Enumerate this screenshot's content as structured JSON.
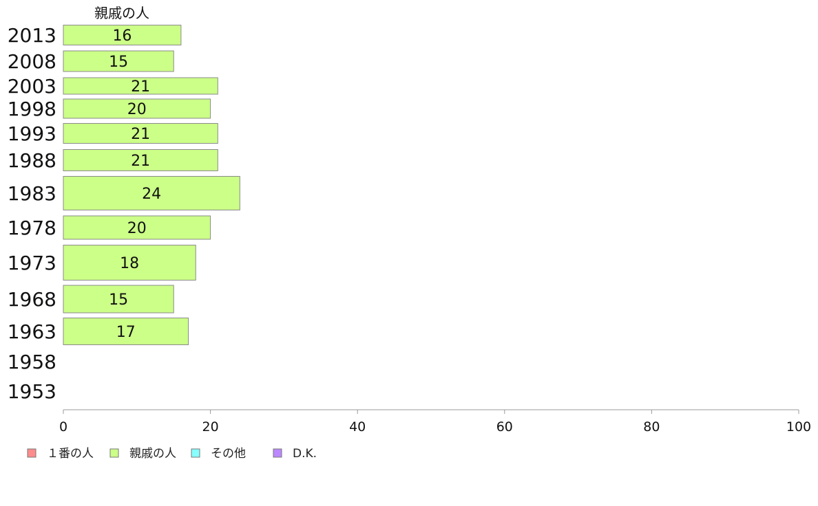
{
  "chart_data": {
    "type": "bar",
    "orientation": "horizontal",
    "column_title": "親戚の人",
    "categories": [
      "2013",
      "2008",
      "2003",
      "1998",
      "1993",
      "1988",
      "1983",
      "1978",
      "1973",
      "1968",
      "1963",
      "1958",
      "1953"
    ],
    "series": [
      {
        "name": "親戚の人",
        "color": "#ccff88",
        "values": [
          16,
          15,
          21,
          20,
          21,
          21,
          24,
          20,
          18,
          15,
          17,
          null,
          null
        ],
        "labels": [
          "16",
          "15",
          "21",
          "20",
          "21",
          "21",
          "24",
          "20",
          "18",
          "15",
          "17",
          "",
          ""
        ]
      }
    ],
    "xlim": [
      0,
      100
    ],
    "x_ticks": [
      "0",
      "20",
      "40",
      "60",
      "80",
      "100"
    ],
    "grid": false,
    "legend": {
      "placement": "bottom-left",
      "items": [
        {
          "label": "１番の人",
          "color": "#ff8c8c"
        },
        {
          "label": "親戚の人",
          "color": "#ccff88"
        },
        {
          "label": "その他",
          "color": "#88ffff"
        },
        {
          "label": "D.K.",
          "color": "#bb88ff"
        }
      ]
    }
  }
}
